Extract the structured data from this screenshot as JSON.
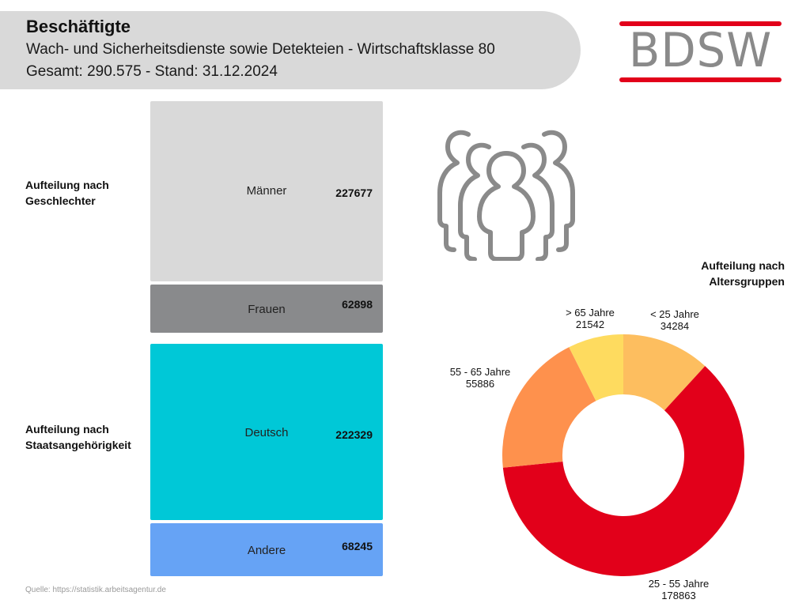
{
  "header": {
    "title": "Beschäftigte",
    "subtitle": "Wach- und Sicherheitsdienste sowie Detekteien - Wirtschaftsklasse 80",
    "summary": "Gesamt: 290.575 - Stand: 31.12.2024"
  },
  "logo": {
    "text": "BDSW",
    "accent_color": "#e2001a",
    "text_color": "#8a8a8a"
  },
  "icon": "people-group-icon",
  "source": "Quelle: https://statistik.arbeitsagentur.de",
  "chart_data": [
    {
      "type": "bar",
      "orientation": "stacked-blocks",
      "title": "Aufteilung nach Geschlechter",
      "title_lines": [
        "Aufteilung nach",
        "Geschlechter"
      ],
      "categories": [
        "Männer",
        "Frauen"
      ],
      "values": [
        227677,
        62898
      ],
      "colors": [
        "#d9d9d9",
        "#898a8c"
      ]
    },
    {
      "type": "bar",
      "orientation": "stacked-blocks",
      "title": "Aufteilung nach Staatsangehörigkeit",
      "title_lines": [
        "Aufteilung nach",
        "Staatsangehörigkeit"
      ],
      "categories": [
        "Deutsch",
        "Andere"
      ],
      "values": [
        222329,
        68245
      ],
      "colors": [
        "#00c8d7",
        "#66a3f5"
      ]
    },
    {
      "type": "pie",
      "subtype": "donut",
      "title": "Aufteilung nach Altersgruppen",
      "title_lines": [
        "Aufteilung nach",
        "Altersgruppen"
      ],
      "categories": [
        "< 25 Jahre",
        "25 - 55 Jahre",
        "55 - 65 Jahre",
        "> 65 Jahre"
      ],
      "values": [
        34284,
        178863,
        55886,
        21542
      ],
      "colors": [
        "#fdbe5f",
        "#e2001a",
        "#fe914d",
        "#fedb5f"
      ],
      "start": "top",
      "direction": "clockwise"
    }
  ]
}
